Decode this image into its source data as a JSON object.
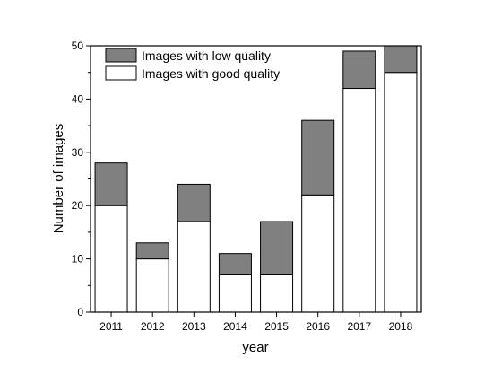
{
  "chart_data": {
    "type": "bar",
    "stacked": true,
    "categories": [
      "2011",
      "2012",
      "2013",
      "2014",
      "2015",
      "2016",
      "2017",
      "2018"
    ],
    "series": [
      {
        "name": "Images with good quality",
        "values": [
          20,
          10,
          17,
          7,
          7,
          22,
          42,
          45
        ],
        "color": "#ffffff"
      },
      {
        "name": "Images with low quality",
        "values": [
          8,
          3,
          7,
          4,
          10,
          14,
          7,
          5
        ],
        "color": "#808080"
      }
    ],
    "xlabel": "year",
    "ylabel": "Number of images",
    "ylim": [
      0,
      50
    ],
    "yticks": [
      "0",
      "10",
      "20",
      "30",
      "40",
      "50"
    ],
    "grid": false,
    "legend_position": "top-left"
  }
}
